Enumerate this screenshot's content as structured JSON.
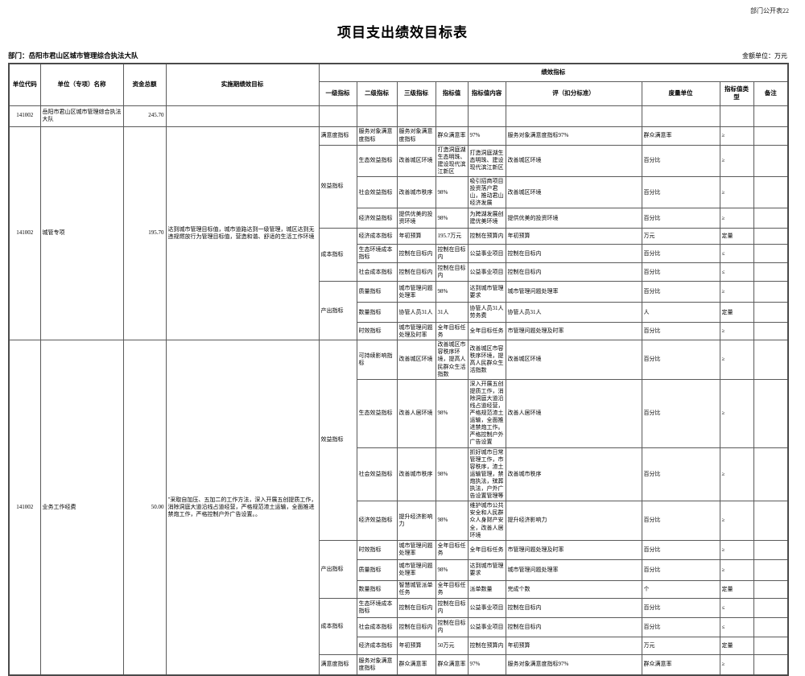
{
  "page": {
    "corner_label": "部门公开表22",
    "title": "项目支出绩效目标表",
    "department_label": "部门：岳阳市君山区城市管理综合执法大队",
    "unit_label": "金额单位：万元"
  },
  "table": {
    "headers": {
      "unit_code": "单位代码",
      "unit_name": "单位（专项）名称",
      "total_fund": "资金总额",
      "impl_target": "实施期绩效目标",
      "perf_group": "绩效指标",
      "sub": [
        "一级指标",
        "二级指标",
        "三级指标",
        "指标值",
        "指标值内容",
        "评（扣分标准）",
        "度量单位",
        "指标值类型",
        "备注"
      ]
    },
    "sections": [
      {
        "unit_code": "141002",
        "unit_name": "岳阳市君山区城市管理综合执法大队",
        "total_fund": "245.70",
        "impl_target": "",
        "rows": [
          {
            "l1": "",
            "l1_span": 1,
            "l2": "",
            "l3": "",
            "value": "",
            "content": "",
            "standard": "",
            "unit": "",
            "type": "",
            "note": ""
          }
        ]
      },
      {
        "unit_code": "141002",
        "unit_name": "城管专项",
        "total_fund": "195.70",
        "impl_target": "达到城市管理目标值，城市道路达到一级管理，城区达到无违规燃放行为管理目标值，营造和谐、舒适的生活工作环境",
        "rows": [
          {
            "l1": "满意度指标",
            "l1_span": 1,
            "l2": "服务对象满意度指标",
            "l3": "服务对象满意度指标",
            "value": "群众满意率",
            "content": "97%",
            "standard": "服务对象满意度指标97%",
            "unit": "群众满意率",
            "type": "≥",
            "note": ""
          },
          {
            "l1": "效益指标",
            "l1_span": 3,
            "l2": "生态效益指标",
            "l3": "改善城区环境",
            "value": "打造洞庭湖生态明珠、建设现代滨江新区",
            "content": "打造洞庭湖生态明珠、建设现代滨江新区",
            "standard": "改善城区环境",
            "unit": "百分比",
            "type": "≥",
            "note": ""
          },
          {
            "l2": "社会效益指标",
            "l3": "改善城市秩序",
            "value": "98%",
            "content": "吸引招商项目投资落户君山，推动君山经济发展",
            "standard": "改善城区环境",
            "unit": "百分比",
            "type": "≥",
            "note": ""
          },
          {
            "l2": "经济效益指标",
            "l3": "提供优美的投资环境",
            "value": "98%",
            "content": "为跨湖发展创建优美环境",
            "standard": "提供优美的投资环境",
            "unit": "百分比",
            "type": "≥",
            "note": ""
          },
          {
            "l1": "成本指标",
            "l1_span": 3,
            "l2": "经济成本指标",
            "l3": "年初预算",
            "value": "195.7万元",
            "content": "控制在预算内",
            "standard": "年初预算",
            "unit": "万元",
            "type": "定量",
            "note": ""
          },
          {
            "l2": "生态环境成本指标",
            "l3": "控制在目标内",
            "value": "控制在目标内",
            "content": "公益事业项目",
            "standard": "控制在目标内",
            "unit": "百分比",
            "type": "≤",
            "note": ""
          },
          {
            "l2": "社会成本指标",
            "l3": "控制在目标内",
            "value": "控制在目标内",
            "content": "公益事业项目",
            "standard": "控制在目标内",
            "unit": "百分比",
            "type": "≤",
            "note": ""
          },
          {
            "l1": "产出指标",
            "l1_span": 3,
            "l2": "质量指标",
            "l3": "城市管理问题处理率",
            "value": "98%",
            "content": "达到城市管理要求",
            "standard": "城市管理问题处理率",
            "unit": "百分比",
            "type": "≥",
            "note": ""
          },
          {
            "l2": "数量指标",
            "l3": "协管人员31人",
            "value": "31人",
            "content": "协管人员31人劳务费",
            "standard": "协管人员31人",
            "unit": "人",
            "type": "定量",
            "note": ""
          },
          {
            "l2": "时效指标",
            "l3": "城市管理问题处理及时率",
            "value": "全年目标任务",
            "content": "全年目标任务",
            "standard": "市管理问题处理及时率",
            "unit": "百分比",
            "type": "≥",
            "note": ""
          }
        ]
      },
      {
        "unit_code": "141002",
        "unit_name": "业务工作经费",
        "total_fund": "50.00",
        "impl_target": "\"采取自加压、五加二的工作方法，深入开展五创提质工作，消除洞庭大道沿线占道经营，严格规范渣土运输，全面推进禁炮工作，严格控制户外广告设置。。",
        "rows": [
          {
            "l1": "效益指标",
            "l1_span": 4,
            "l2": "可持续影响指标",
            "l3": "改善城区环境",
            "value": "改善城区市容秩序环境，提高人民群众生活指数",
            "content": "改善城区市容秩序环境，提高人民群众生活指数",
            "standard": "改善城区环境",
            "unit": "百分比",
            "type": "≥",
            "note": ""
          },
          {
            "l2": "生态效益指标",
            "l3": "改善人居环境",
            "value": "98%",
            "content": "深入开展五创提质工作，消除洞庭大道沿线占道经营，严格规范渣土运输，全面推进禁炮工作。严格控制户外广告设置",
            "standard": "改善人居环境",
            "unit": "百分比",
            "type": "≥",
            "note": ""
          },
          {
            "l2": "社会效益指标",
            "l3": "改善城市秩序",
            "value": "98%",
            "content": "抓好城市日常管理工作，市容秩序，渣土运输管理，禁炮执法，殡葬执法，户外广告设置管理等",
            "standard": "改善城市秩序",
            "unit": "百分比",
            "type": "≥",
            "note": ""
          },
          {
            "l2": "经济效益指标",
            "l3": "提升经济影响力",
            "value": "98%",
            "content": "维护城市公共安全和人民群众人身财产安全，改善人居环境",
            "standard": "提升经济影响力",
            "unit": "百分比",
            "type": "≥",
            "note": ""
          },
          {
            "l1": "产出指标",
            "l1_span": 3,
            "l2": "时效指标",
            "l3": "城市管理问题处理率",
            "value": "全年目标任务",
            "content": "全年目标任务",
            "standard": "市管理问题处理及时率",
            "unit": "百分比",
            "type": "≥",
            "note": ""
          },
          {
            "l2": "质量指标",
            "l3": "城市管理问题处理率",
            "value": "98%",
            "content": "达到城市管理要求",
            "standard": "城市管理问题处理率",
            "unit": "百分比",
            "type": "≥",
            "note": ""
          },
          {
            "l2": "数量指标",
            "l3": "智慧城管派单任务",
            "value": "全年目标任务",
            "content": "派单数量",
            "standard": "完成个数",
            "unit": "个",
            "type": "定量",
            "note": ""
          },
          {
            "l1": "成本指标",
            "l1_span": 3,
            "l2": "生态环境成本指标",
            "l3": "控制在目标内",
            "value": "控制在目标内",
            "content": "公益事业项目",
            "standard": "控制在目标内",
            "unit": "百分比",
            "type": "≤",
            "note": ""
          },
          {
            "l2": "社会成本指标",
            "l3": "控制在目标内",
            "value": "控制在目标内",
            "content": "公益事业项目",
            "standard": "控制在目标内",
            "unit": "百分比",
            "type": "≤",
            "note": ""
          },
          {
            "l2": "经济成本指标",
            "l3": "年初预算",
            "value": "50万元",
            "content": "控制在预算内",
            "standard": "年初预算",
            "unit": "万元",
            "type": "定量",
            "note": ""
          },
          {
            "l1": "满意度指标",
            "l1_span": 1,
            "l2": "服务对象满意度指标",
            "l3": "群众满意率",
            "value": "群众满意率",
            "content": "97%",
            "standard": "服务对象满意度指标97%",
            "unit": "群众满意率",
            "type": "≥",
            "note": ""
          }
        ]
      }
    ]
  }
}
